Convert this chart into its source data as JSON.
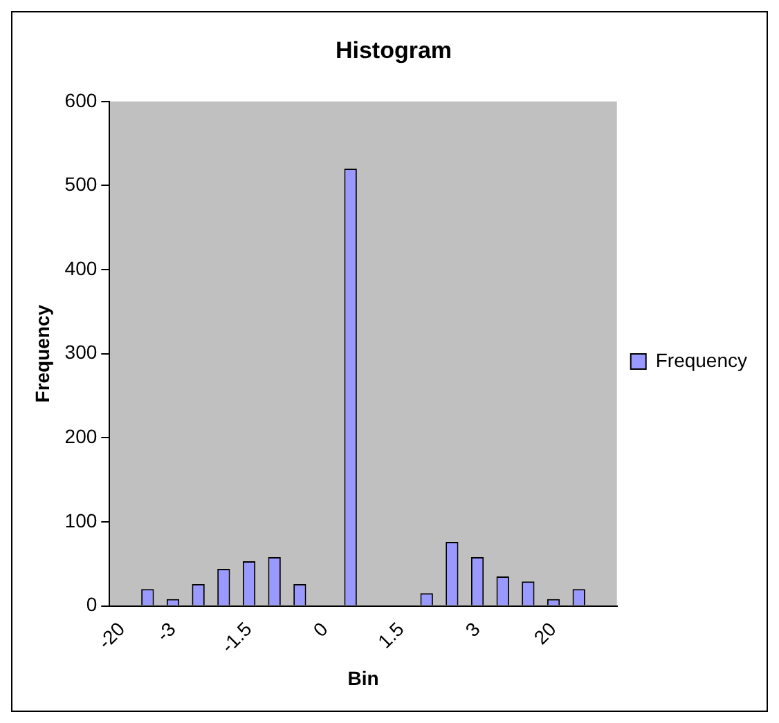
{
  "chart_data": {
    "type": "bar",
    "title": "Histogram",
    "xlabel": "Bin",
    "ylabel": "Frequency",
    "categories": [
      "-20",
      null,
      "-3",
      null,
      null,
      "-1.5",
      null,
      null,
      "0",
      null,
      null,
      "1.5",
      null,
      null,
      "3",
      null,
      null,
      "20",
      null,
      null
    ],
    "series": [
      {
        "name": "Frequency",
        "color": "#9999ff",
        "values": [
          0,
          20,
          8,
          26,
          44,
          53,
          58,
          26,
          0,
          520,
          0,
          0,
          15,
          76,
          58,
          35,
          29,
          8,
          20,
          0
        ]
      }
    ],
    "ylim": [
      0,
      600
    ],
    "yticks": [
      0,
      100,
      200,
      300,
      400,
      500,
      600
    ],
    "grid": false,
    "legend": "right"
  }
}
